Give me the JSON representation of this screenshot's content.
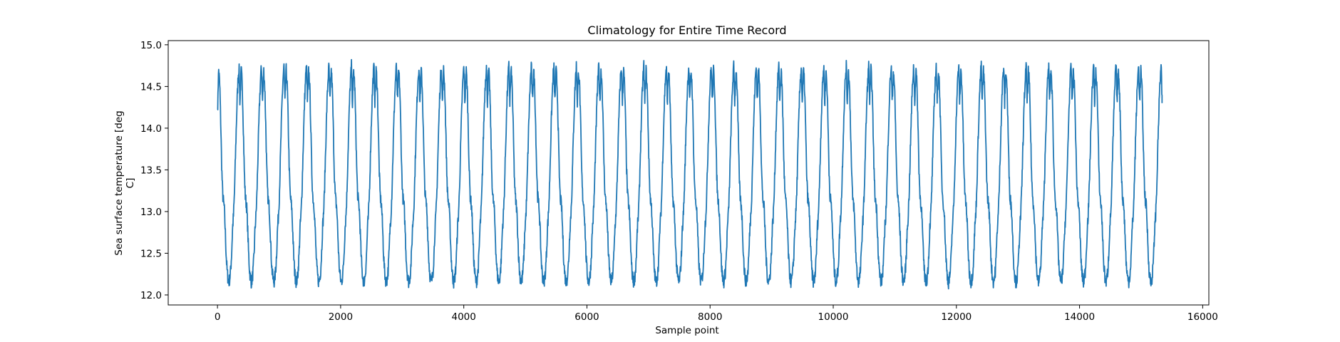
{
  "chart_data": {
    "type": "line",
    "title": "Climatology for Entire Time Record",
    "xlabel": "Sample point",
    "ylabel_lines": [
      "Sea surface temperature [deg",
      "C]"
    ],
    "xlim": [
      -800,
      16100
    ],
    "ylim": [
      11.88,
      15.05
    ],
    "xticks": [
      0,
      2000,
      4000,
      6000,
      8000,
      10000,
      12000,
      14000,
      16000
    ],
    "xtick_labels": [
      "0",
      "2000",
      "4000",
      "6000",
      "8000",
      "10000",
      "12000",
      "14000",
      "16000"
    ],
    "yticks": [
      12.0,
      12.5,
      13.0,
      13.5,
      14.0,
      14.5,
      15.0
    ],
    "ytick_labels": [
      "12.0",
      "12.5",
      "13.0",
      "13.5",
      "14.0",
      "14.5",
      "15.0"
    ],
    "grid": false,
    "line_color": "#1f77b4",
    "series": [
      {
        "x_start": 0,
        "x_end": 15340,
        "period": 365.25,
        "y_start": 14.22,
        "y_end": 14.3,
        "cycle_profile": [
          {
            "day": 0,
            "value": 14.3
          },
          {
            "day": 10,
            "value": 14.5
          },
          {
            "day": 20,
            "value": 14.7
          },
          {
            "day": 30,
            "value": 14.6
          },
          {
            "day": 40,
            "value": 14.45
          },
          {
            "day": 55,
            "value": 14.0
          },
          {
            "day": 70,
            "value": 13.5
          },
          {
            "day": 85,
            "value": 13.2
          },
          {
            "day": 100,
            "value": 13.1
          },
          {
            "day": 110,
            "value": 13.05
          },
          {
            "day": 125,
            "value": 12.8
          },
          {
            "day": 140,
            "value": 12.5
          },
          {
            "day": 155,
            "value": 12.3
          },
          {
            "day": 170,
            "value": 12.2
          },
          {
            "day": 185,
            "value": 12.15
          },
          {
            "day": 200,
            "value": 12.2
          },
          {
            "day": 215,
            "value": 12.3
          },
          {
            "day": 230,
            "value": 12.5
          },
          {
            "day": 245,
            "value": 12.8
          },
          {
            "day": 260,
            "value": 12.95
          },
          {
            "day": 275,
            "value": 13.2
          },
          {
            "day": 290,
            "value": 13.6
          },
          {
            "day": 305,
            "value": 14.0
          },
          {
            "day": 320,
            "value": 14.35
          },
          {
            "day": 335,
            "value": 14.6
          },
          {
            "day": 350,
            "value": 14.75
          },
          {
            "day": 365.25,
            "value": 14.3
          }
        ],
        "peak_max": 14.9,
        "trough_min": 12.03
      }
    ]
  }
}
